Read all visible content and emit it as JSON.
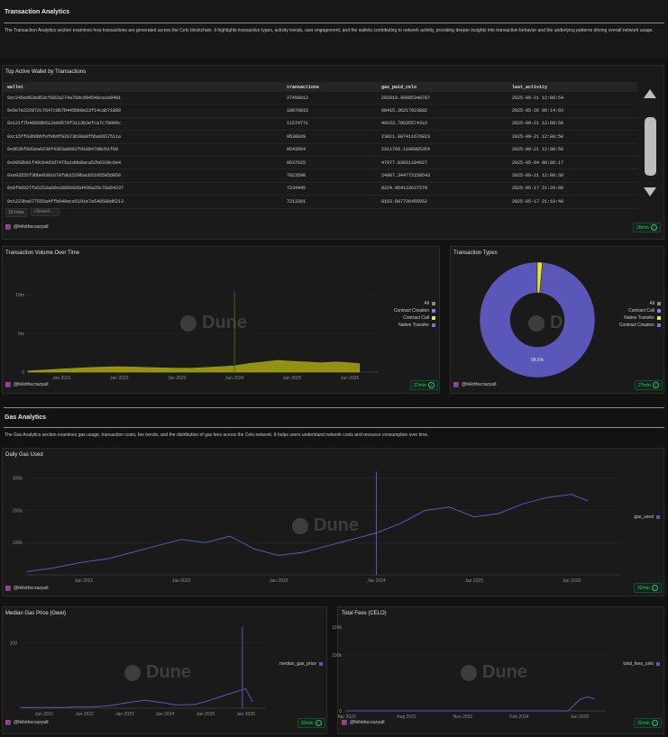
{
  "tx_section": {
    "title": "Transaction Analytics",
    "description": "The Transaction Analytics section examines how transactions are generated across the Celo blockchain. It highlights transaction types, activity trends, user engagement, and the wallets contributing to network activity, providing deeper insights into transaction behavior and the underlying patterns driving overall network usage."
  },
  "wallet_table": {
    "title": "Top Active Wallet by Transactions",
    "columns": [
      "wallet",
      "transactions",
      "gas_paid_celo",
      "last_activity"
    ],
    "rows": [
      [
        "0xc245ed63ed53cf862a274a76dcd94549ca1e8481",
        "27458812",
        "282919.99985348787",
        "2025-09-21 12:08:54"
      ],
      [
        "0x6e7e222972c7647c8b7b445bb8e23f14cab71889",
        "18879815",
        "68415.36217923882",
        "2025-05-26 06:14:03"
      ],
      [
        "0x121f7b48858b512e8d579f3113b3efca7c79866c",
        "11574771",
        "49153.79635574316",
        "2025-09-21 12:08:58"
      ],
      [
        "0xc15ff63b6bbfefebdf92673b38a0f5ba6657511a",
        "9538839",
        "23811.987411676823",
        "2025-09-21 12:08:58"
      ],
      [
        "0xd63bf8d3ea6230f4363a6662fd18947d8cb1f89",
        "9643564",
        "2311769.1186985354",
        "2025-09-21 12:08:59"
      ],
      [
        "0x9958b91f49cb4d3d7475a1dde8aca52b6339c6e4",
        "8637925",
        "47977.83831184927",
        "2025-05-04 06:06:17"
      ],
      [
        "0xe93555f3bbe8381678fab1529bacb5195595d958",
        "7823598",
        "24987.344772158543",
        "2025-09-21 12:08:38"
      ],
      [
        "0x8f9d327fa5253a68e18856935d436a25c78a54237",
        "7234445",
        "8224.964133637579",
        "2025-05-17 21:29:06"
      ],
      [
        "0x1223ba977555a4ffb949ace5181e7a548588d6213",
        "7213381",
        "8183.887736455952",
        "2025-05-17 21:19:49"
      ]
    ],
    "footer_rows": "10 rows",
    "search_placeholder": "Search...",
    "credit": "@fellothecrazyatl",
    "refresh": "28min"
  },
  "volume_chart": {
    "title": "Transaction Volume Over Time",
    "legend": [
      {
        "label": "All",
        "color": "#888888"
      },
      {
        "label": "Contract Creation",
        "color": "#8080ff"
      },
      {
        "label": "Contract Call",
        "color": "#e8e820"
      },
      {
        "label": "Native Transfer",
        "color": "#7b6fd6"
      }
    ],
    "credit": "@fellothecrazyatl",
    "refresh": "27min",
    "watermark": "Dune"
  },
  "types_chart": {
    "title": "Transaction Types",
    "legend": [
      {
        "label": "All",
        "color": "#888888"
      },
      {
        "label": "Contract Call",
        "color": "#8080ff"
      },
      {
        "label": "Native Transfer",
        "color": "#e8e820"
      },
      {
        "label": "Contract Creation",
        "color": "#7b6fd6"
      }
    ],
    "slice_label": "98.6%",
    "credit": "@fellothecrazyatl",
    "refresh": "27min",
    "watermark": "Dune"
  },
  "gas_section": {
    "title": "Gas Analytics",
    "description": "The Gas Analytics section examines gas usage, transaction costs, fee trends, and the distribution of gas fees across the Celo network. It helps users understand network costs and resource consumption over time."
  },
  "daily_gas": {
    "title": "Daily Gas Used",
    "legend": [
      {
        "label": "gas_used",
        "color": "#5b57b8"
      }
    ],
    "credit": "@fellothecrazyatl",
    "refresh": "32min",
    "watermark": "Dune"
  },
  "median_gas": {
    "title": "Median Gas Price (Gwei)",
    "legend": [
      {
        "label": "median_gas_price",
        "color": "#5b57b8"
      }
    ],
    "credit": "@fellothecrazyatl",
    "refresh": "32min",
    "watermark": "Dune"
  },
  "total_fees": {
    "title": "Total Fees (CELO)",
    "legend": [
      {
        "label": "total_fees_celo",
        "color": "#5b57b8"
      }
    ],
    "credit": "@fellothecrazyatl",
    "refresh": "32min",
    "watermark": "Dune"
  },
  "chart_data": [
    {
      "type": "area",
      "name": "volume",
      "x_ticks": [
        "Jan 2021",
        "Jan 2022",
        "Jan 2023",
        "Jan 2024",
        "Jan 2025",
        "Jan 2026"
      ],
      "y_ticks": [
        "10m",
        "5m",
        "0"
      ],
      "ylim": [
        0,
        12000000
      ],
      "x": [
        "2020-06",
        "2020-09",
        "2021-01",
        "2021-04",
        "2021-07",
        "2021-10",
        "2022-01",
        "2022-04",
        "2022-07",
        "2022-10",
        "2023-01",
        "2023-04",
        "2023-07",
        "2023-10",
        "2024-01",
        "2024-04",
        "2024-07",
        "2024-10",
        "2025-01",
        "2025-04",
        "2025-07",
        "2025-10",
        "2026-01",
        "2026-03"
      ],
      "series": [
        {
          "values": [
            150000,
            250000,
            400000,
            500000,
            600000,
            650000,
            700000,
            650000,
            600000,
            550000,
            500000,
            500000,
            600000,
            700000,
            800000,
            1100000,
            1300000,
            1500000,
            1400000,
            1300000,
            1200000,
            1300000,
            1200000,
            1100000
          ]
        }
      ],
      "spike": {
        "x": "2024-01",
        "value": 10500000
      }
    },
    {
      "type": "pie",
      "name": "transaction_types",
      "labels": [
        "Contract Call",
        "Native Transfer"
      ],
      "values": [
        98.6,
        1.4
      ]
    },
    {
      "type": "line",
      "name": "gas_used",
      "x_ticks": [
        "Jan 2021",
        "Jan 2022",
        "Jan 2023",
        "Jan 2024",
        "Jan 2025",
        "Jan 2026"
      ],
      "y_ticks": [
        "300b",
        "200b",
        "100b"
      ],
      "ylim": [
        0,
        330000000000
      ],
      "x": [
        "2020-06",
        "2020-09",
        "2021-01",
        "2021-04",
        "2021-07",
        "2021-10",
        "2022-01",
        "2022-04",
        "2022-07",
        "2022-10",
        "2023-01",
        "2023-04",
        "2023-07",
        "2023-10",
        "2024-01",
        "2024-04",
        "2024-07",
        "2024-10",
        "2025-01",
        "2025-04",
        "2025-07",
        "2025-10",
        "2026-01",
        "2026-03"
      ],
      "series": [
        {
          "name": "gas_used",
          "values": [
            10000000000,
            20000000000,
            40000000000,
            50000000000,
            70000000000,
            90000000000,
            110000000000,
            100000000000,
            120000000000,
            80000000000,
            60000000000,
            70000000000,
            90000000000,
            110000000000,
            130000000000,
            160000000000,
            200000000000,
            210000000000,
            180000000000,
            190000000000,
            220000000000,
            240000000000,
            250000000000,
            230000000000
          ]
        }
      ],
      "spike": {
        "x": "2024-01",
        "value": 320000000000
      }
    },
    {
      "type": "line",
      "name": "median_gas_price",
      "x_ticks": [
        "Jan 2021",
        "Jan 2022",
        "Jan 2023",
        "Jan 2024",
        "Jan 2025",
        "Jan 2026"
      ],
      "y_ticks": [
        "100"
      ],
      "ylim": [
        0,
        130
      ],
      "x": [
        "2020-06",
        "2020-09",
        "2021-01",
        "2021-04",
        "2021-07",
        "2021-10",
        "2022-01",
        "2022-04",
        "2022-07",
        "2022-10",
        "2023-01",
        "2023-04",
        "2023-07",
        "2023-10",
        "2024-01",
        "2024-04",
        "2024-07",
        "2024-10",
        "2025-01",
        "2025-04",
        "2025-07",
        "2025-10",
        "2026-01",
        "2026-03"
      ],
      "series": [
        {
          "name": "median_gas_price",
          "values": [
            1,
            1,
            1,
            1,
            1,
            2,
            2,
            2,
            3,
            5,
            8,
            10,
            12,
            10,
            8,
            5,
            5,
            6,
            10,
            15,
            20,
            25,
            30,
            10
          ]
        }
      ],
      "spike": {
        "x": "2025-12",
        "value": 125
      }
    },
    {
      "type": "line",
      "name": "total_fees_celo",
      "x_ticks": [
        "Apr 2020",
        "Aug 2021",
        "Nov 2022",
        "Feb 2024",
        "Jun 2025"
      ],
      "y_ticks": [
        "150k",
        "100k",
        "0"
      ],
      "ylim": [
        0,
        160000
      ],
      "x": [
        "2020-04",
        "2020-12",
        "2021-08",
        "2022-04",
        "2022-11",
        "2023-06",
        "2024-02",
        "2024-09",
        "2025-03",
        "2025-06",
        "2025-08",
        "2025-10"
      ],
      "series": [
        {
          "name": "total_fees_celo",
          "values": [
            0,
            0,
            0,
            0,
            0,
            0,
            0,
            0,
            0,
            20000,
            25000,
            22000
          ]
        }
      ]
    }
  ]
}
